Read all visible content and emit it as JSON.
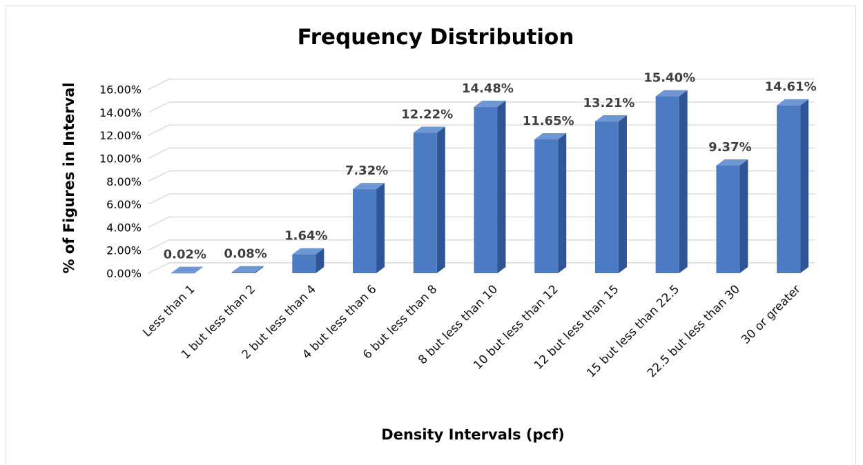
{
  "chart_data": {
    "type": "bar",
    "title": "Frequency Distribution",
    "xlabel": "Density Intervals (pcf)",
    "ylabel": "% of Figures in Interval",
    "categories": [
      "Less than 1",
      "1 but less than 2",
      "2 but less than 4",
      "4 but less than 6",
      "6 but less than 8",
      "8 but less than 10",
      "10 but less than 12",
      "12 but less than 15",
      "15 but less than 22.5",
      "22.5 but less than 30",
      "30 or greater"
    ],
    "values": [
      0.02,
      0.08,
      1.64,
      7.32,
      12.22,
      14.48,
      11.65,
      13.21,
      15.4,
      9.37,
      14.61
    ],
    "data_labels": [
      "0.02%",
      "0.08%",
      "1.64%",
      "7.32%",
      "12.22%",
      "14.48%",
      "11.65%",
      "13.21%",
      "15.40%",
      "9.37%",
      "14.61%"
    ],
    "ylim": [
      0,
      16
    ],
    "y_ticks": [
      0,
      2,
      4,
      6,
      8,
      10,
      12,
      14,
      16
    ],
    "y_tick_labels": [
      "0.00%",
      "2.00%",
      "4.00%",
      "6.00%",
      "8.00%",
      "10.00%",
      "12.00%",
      "14.00%",
      "16.00%"
    ],
    "grid": true,
    "legend": "none",
    "style": "3d-column",
    "colors": {
      "front": "#4a7bc3",
      "side": "#2f5597",
      "top": "#6f97d4",
      "grid": "#d9d9d9"
    }
  }
}
